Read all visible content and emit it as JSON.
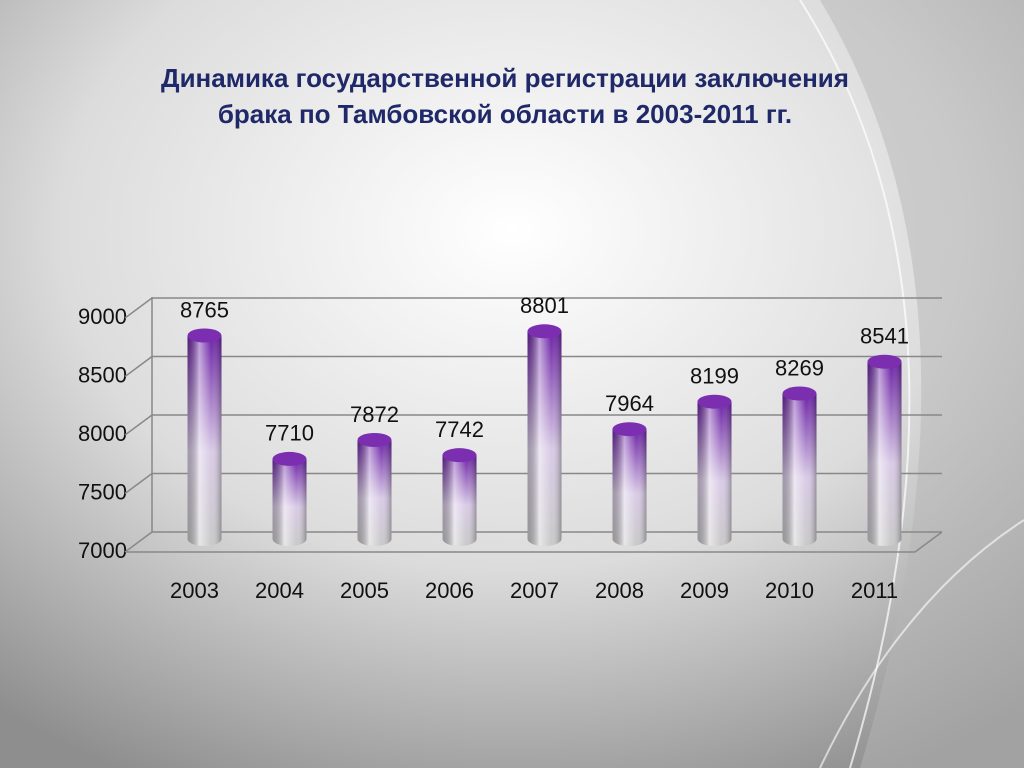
{
  "chart_data": {
    "type": "bar",
    "title": [
      "Динамика государственной регистрации заключения",
      "брака по Тамбовской области в 2003-2011 гг."
    ],
    "categories": [
      "2003",
      "2004",
      "2005",
      "2006",
      "2007",
      "2008",
      "2009",
      "2010",
      "2011"
    ],
    "values": [
      8765,
      7710,
      7872,
      7742,
      8801,
      7964,
      8199,
      8269,
      8541
    ],
    "color": "#7b2fb0",
    "ylim": [
      7000,
      9000
    ],
    "yticks": [
      7000,
      7500,
      8000,
      8500,
      9000
    ],
    "grid": true
  }
}
